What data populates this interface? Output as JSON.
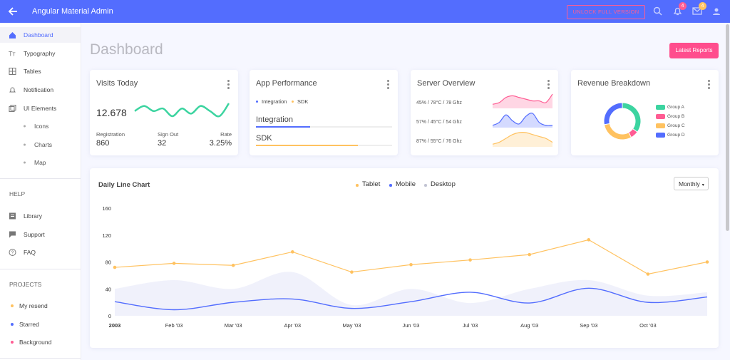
{
  "header": {
    "title": "Angular Material Admin",
    "unlock_button": "UNLOCK FULL VERSION",
    "notifications_badge": "4",
    "messages_badge": "4"
  },
  "sidebar": {
    "items": [
      "Dashboard",
      "Typography",
      "Tables",
      "Notification",
      "UI Elements"
    ],
    "ui_elements": [
      "Icons",
      "Charts",
      "Map"
    ],
    "help_heading": "HELP",
    "help_items": [
      "Library",
      "Support",
      "FAQ"
    ],
    "projects_heading": "PROJECTS",
    "projects": [
      {
        "name": "My resend",
        "color": "#ffc260"
      },
      {
        "name": "Starred",
        "color": "#536dfe"
      },
      {
        "name": "Background",
        "color": "#ff5c93"
      }
    ]
  },
  "page": {
    "title": "Dashboard",
    "button": "Latest Reports"
  },
  "visits": {
    "title": "Visits Today",
    "total": "12.678",
    "trend": [
      5,
      7,
      5,
      6,
      3,
      6,
      4,
      7,
      5,
      3,
      8
    ],
    "color": "#3cd4a0",
    "stats": [
      {
        "label": "Registration",
        "value": "860"
      },
      {
        "label": "Sign Out",
        "value": "32"
      },
      {
        "label": "Rate",
        "value": "3.25%"
      }
    ]
  },
  "performance": {
    "title": "App Performance",
    "series": [
      {
        "name": "Integration",
        "color": "#536dfe",
        "value": 40
      },
      {
        "name": "SDK",
        "color": "#ffc260",
        "value": 75
      }
    ]
  },
  "server": {
    "title": "Server Overview",
    "rows": [
      {
        "label": "45% / 78°C / 78 Ghz",
        "color": "#ff5c93",
        "values": [
          2,
          3,
          6,
          7,
          6,
          5,
          4,
          4,
          3,
          8
        ]
      },
      {
        "label": "57% / 45°C / 54 Ghz",
        "color": "#536dfe",
        "values": [
          1,
          3,
          8,
          4,
          2,
          7,
          9,
          3,
          1,
          1
        ]
      },
      {
        "label": "87% / 55°C / 76 Ghz",
        "color": "#ffc260",
        "values": [
          1,
          2,
          4,
          6,
          7,
          7,
          6,
          5,
          4,
          2
        ]
      }
    ]
  },
  "revenue": {
    "type": "pie",
    "title": "Revenue Breakdown",
    "categories": [
      "Group A",
      "Group B",
      "Group C",
      "Group D"
    ],
    "values": [
      35,
      7,
      30,
      28
    ],
    "colors": [
      "#3cd4a0",
      "#ff5c93",
      "#ffc260",
      "#536dfe"
    ]
  },
  "daily_chart": {
    "type": "line",
    "title": "Daily Line Chart",
    "select": "Monthly",
    "categories": [
      "2003",
      "Feb '03",
      "Mar '03",
      "Apr '03",
      "May '03",
      "Jun '03",
      "Jul '03",
      "Aug '03",
      "Sep '03",
      "Oct '03",
      null
    ],
    "series": [
      {
        "name": "Tablet",
        "color": "#ffc260",
        "style": "line",
        "values": [
          72,
          78,
          75,
          95,
          65,
          76,
          83,
          91,
          113,
          62,
          80
        ]
      },
      {
        "name": "Mobile",
        "color": "#536dfe",
        "style": "smooth",
        "values": [
          21,
          9,
          20,
          25,
          11,
          21,
          35,
          19,
          41,
          20,
          28
        ]
      },
      {
        "name": "Desktop",
        "color": "#e4e6f8",
        "style": "area",
        "values": [
          40,
          53,
          40,
          65,
          16,
          40,
          19,
          40,
          53,
          30,
          35
        ]
      }
    ],
    "ylim": [
      0,
      160
    ],
    "yticks": [
      0,
      40,
      80,
      120,
      160
    ]
  }
}
